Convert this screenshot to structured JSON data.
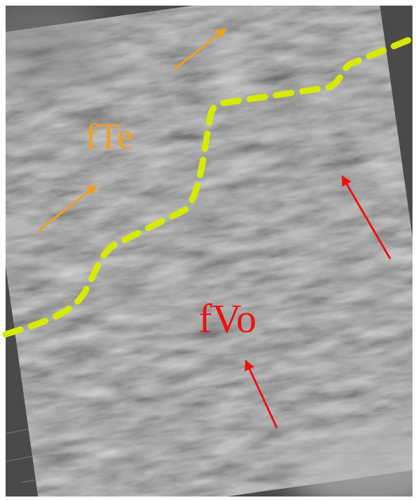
{
  "annotations": [
    {
      "text": "fTe"
    },
    {
      "text": "fVo"
    }
  ]
}
